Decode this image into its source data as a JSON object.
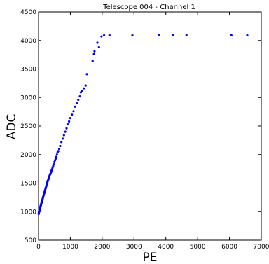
{
  "chart_data": {
    "type": "scatter",
    "title": "Telescope 004 - Channel 1",
    "xlabel": "PE",
    "ylabel": "ADC",
    "xlim": [
      0,
      7000
    ],
    "ylim": [
      500,
      4500
    ],
    "xticks": [
      0,
      1000,
      2000,
      3000,
      4000,
      5000,
      6000,
      7000
    ],
    "yticks": [
      500,
      1000,
      1500,
      2000,
      2500,
      3000,
      3500,
      4000,
      4500
    ],
    "grid": false,
    "marker_color": "#0000ff",
    "series": [
      {
        "x": [
          5,
          10,
          15,
          20,
          25,
          30,
          35,
          40,
          45,
          50,
          55,
          60,
          65,
          70,
          75,
          80,
          85,
          90,
          95,
          100,
          110,
          120,
          130,
          140,
          150,
          160,
          170,
          180,
          190,
          200,
          210,
          220,
          230,
          240,
          250,
          260,
          270,
          280,
          290,
          300,
          310,
          320,
          330,
          340,
          350,
          360,
          370,
          380,
          390,
          400,
          410,
          420,
          440,
          460,
          480,
          500,
          520,
          540,
          560,
          580,
          600,
          620,
          650,
          680,
          720,
          760,
          800,
          840,
          880,
          920,
          960,
          1000,
          1050,
          1100,
          1150,
          1200,
          1250,
          1300,
          1330,
          1370,
          1420,
          1480,
          1520,
          1700,
          1740,
          1760,
          1850,
          1900,
          1980,
          2060,
          2230,
          2950,
          3780,
          4220,
          4650,
          6060,
          6560
        ],
        "y": [
          960,
          980,
          990,
          1000,
          1010,
          1020,
          1030,
          1040,
          1050,
          1060,
          1075,
          1085,
          1095,
          1105,
          1115,
          1125,
          1135,
          1145,
          1155,
          1165,
          1185,
          1205,
          1225,
          1245,
          1265,
          1285,
          1305,
          1325,
          1345,
          1365,
          1380,
          1400,
          1420,
          1440,
          1460,
          1480,
          1500,
          1520,
          1540,
          1550,
          1570,
          1580,
          1600,
          1620,
          1630,
          1650,
          1660,
          1670,
          1690,
          1700,
          1720,
          1740,
          1770,
          1800,
          1830,
          1870,
          1900,
          1930,
          1960,
          2000,
          2040,
          2060,
          2100,
          2150,
          2220,
          2280,
          2340,
          2400,
          2460,
          2530,
          2580,
          2640,
          2700,
          2760,
          2840,
          2900,
          2960,
          3020,
          3090,
          3110,
          3160,
          3210,
          3410,
          3640,
          3760,
          3810,
          3960,
          3880,
          4070,
          4090,
          4090,
          4090,
          4090,
          4090,
          4090,
          4090,
          4090
        ]
      }
    ]
  }
}
